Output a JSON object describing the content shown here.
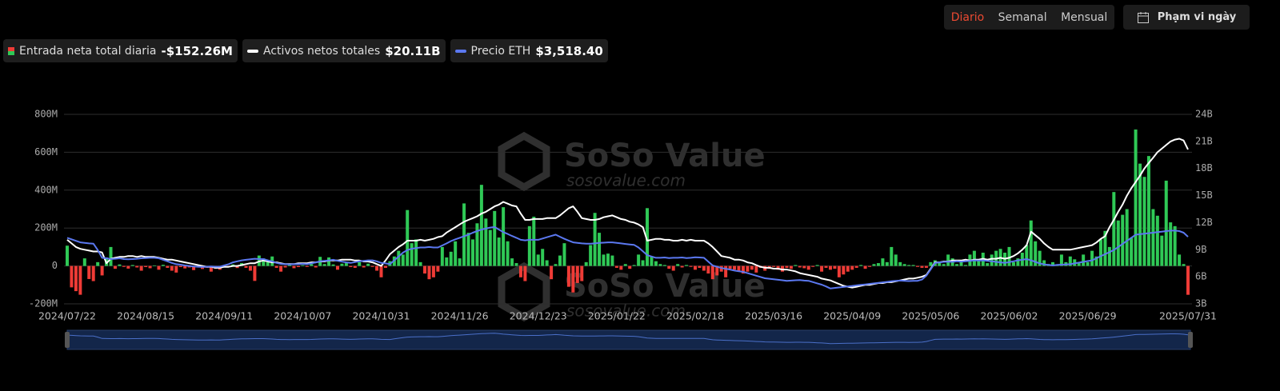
{
  "chart_data": {
    "type": "bar",
    "controls": [
      "Diario",
      "Semanal",
      "Mensual"
    ],
    "active_control": 0,
    "date_button": "Phạm vi ngày",
    "watermark": {
      "brand": "SoSo Value",
      "url": "sosovalue.com"
    },
    "categories": [
      "2024/07/22",
      null,
      null,
      null,
      null,
      null,
      null,
      null,
      null,
      null,
      null,
      null,
      null,
      null,
      null,
      null,
      null,
      null,
      "2024/08/15",
      null,
      null,
      null,
      null,
      null,
      null,
      null,
      null,
      null,
      null,
      null,
      null,
      null,
      null,
      null,
      null,
      null,
      "2024/09/11",
      null,
      null,
      null,
      null,
      null,
      null,
      null,
      null,
      null,
      null,
      null,
      null,
      null,
      null,
      null,
      null,
      null,
      "2024/10/07",
      null,
      null,
      null,
      null,
      null,
      null,
      null,
      null,
      null,
      null,
      null,
      null,
      null,
      null,
      null,
      null,
      null,
      "2024/10/31",
      null,
      null,
      null,
      null,
      null,
      null,
      null,
      null,
      null,
      null,
      null,
      null,
      null,
      null,
      null,
      null,
      null,
      "2024/11/26",
      null,
      null,
      null,
      null,
      null,
      null,
      null,
      null,
      null,
      null,
      null,
      null,
      null,
      null,
      null,
      null,
      null,
      "2024/12/23",
      null,
      null,
      null,
      null,
      null,
      null,
      null,
      null,
      null,
      null,
      null,
      null,
      null,
      null,
      null,
      null,
      null,
      "2025/01/22",
      null,
      null,
      null,
      null,
      null,
      null,
      null,
      null,
      null,
      null,
      null,
      null,
      null,
      null,
      null,
      null,
      null,
      "2025/02/18",
      null,
      null,
      null,
      null,
      null,
      null,
      null,
      null,
      null,
      null,
      null,
      null,
      null,
      null,
      null,
      null,
      null,
      "2025/03/16",
      null,
      null,
      null,
      null,
      null,
      null,
      null,
      null,
      null,
      null,
      null,
      null,
      null,
      null,
      null,
      null,
      null,
      "2025/04/09",
      null,
      null,
      null,
      null,
      null,
      null,
      null,
      null,
      null,
      null,
      null,
      null,
      null,
      null,
      null,
      null,
      null,
      "2025/05/06",
      null,
      null,
      null,
      null,
      null,
      null,
      null,
      null,
      null,
      null,
      null,
      null,
      null,
      null,
      null,
      null,
      null,
      "2025/06/02",
      null,
      null,
      null,
      null,
      null,
      null,
      null,
      null,
      null,
      null,
      null,
      null,
      null,
      null,
      null,
      null,
      null,
      "2025/06/29",
      null,
      null,
      null,
      null,
      null,
      null,
      null,
      null,
      null,
      null,
      null,
      null,
      null,
      null,
      null,
      null,
      null,
      null,
      null,
      null,
      null,
      null,
      "2025/07/31"
    ],
    "series": [
      {
        "name": "Entrada neta total diaria",
        "legend_value": "-$152.26M",
        "type": "bar",
        "axis": "y",
        "colors": {
          "positive": "#2fc956",
          "negative": "#ef3b36"
        },
        "values": [
          107,
          -113,
          -133,
          -152,
          40,
          -69,
          -80,
          20,
          -50,
          45,
          100,
          -15,
          8,
          -5,
          -14,
          5,
          -8,
          -25,
          -6,
          -12,
          3,
          -20,
          6,
          -10,
          -25,
          -35,
          -6,
          -13,
          -8,
          -22,
          -5,
          -16,
          -10,
          -30,
          -15,
          -20,
          -8,
          -5,
          8,
          -11,
          15,
          -10,
          -25,
          -79,
          55,
          40,
          20,
          50,
          -10,
          -30,
          -8,
          5,
          -12,
          -6,
          4,
          -5,
          10,
          -8,
          48,
          10,
          45,
          8,
          -20,
          12,
          15,
          -6,
          -10,
          20,
          -8,
          12,
          -5,
          -25,
          -60,
          -10,
          25,
          50,
          80,
          60,
          295,
          120,
          140,
          20,
          -40,
          -70,
          -60,
          -30,
          100,
          45,
          75,
          130,
          40,
          330,
          175,
          140,
          225,
          428,
          250,
          190,
          290,
          150,
          310,
          130,
          40,
          15,
          -60,
          -80,
          210,
          260,
          60,
          90,
          30,
          -70,
          10,
          55,
          120,
          -110,
          -140,
          -90,
          -80,
          20,
          110,
          280,
          175,
          60,
          65,
          55,
          -10,
          -20,
          10,
          -15,
          5,
          60,
          30,
          305,
          50,
          25,
          10,
          5,
          -15,
          -25,
          10,
          -8,
          5,
          -5,
          -20,
          -10,
          -25,
          -40,
          -70,
          -50,
          -30,
          -60,
          -15,
          -20,
          -25,
          -40,
          -30,
          -20,
          -35,
          -10,
          -25,
          -15,
          -5,
          -20,
          -30,
          -10,
          -15,
          5,
          -8,
          -12,
          -20,
          -5,
          5,
          -30,
          -10,
          -20,
          -15,
          -60,
          -45,
          -30,
          -20,
          -10,
          5,
          -15,
          -5,
          10,
          15,
          40,
          20,
          100,
          60,
          20,
          10,
          5,
          5,
          -5,
          -10,
          -10,
          20,
          30,
          15,
          10,
          60,
          40,
          10,
          20,
          5,
          60,
          80,
          30,
          70,
          15,
          60,
          80,
          90,
          70,
          100,
          20,
          40,
          70,
          110,
          240,
          130,
          80,
          30,
          10,
          20,
          5,
          60,
          20,
          50,
          35,
          15,
          60,
          20,
          80,
          50,
          140,
          185,
          100,
          390,
          240,
          270,
          300,
          150,
          720,
          540,
          470,
          580,
          300,
          265,
          160,
          450,
          230,
          210,
          60,
          10,
          -152.26
        ]
      },
      {
        "name": "Activos netos totales",
        "legend_value": "$20.11B",
        "type": "line",
        "axis": "y2",
        "color": "#ffffff",
        "values": [
          10.1,
          9.7,
          9.3,
          9.1,
          9.0,
          8.9,
          8.8,
          8.8,
          8.7,
          7.5,
          8.0,
          8.1,
          8.2,
          8.2,
          8.3,
          8.3,
          8.2,
          8.3,
          8.2,
          8.2,
          8.2,
          8.1,
          8.0,
          7.9,
          7.9,
          7.8,
          7.7,
          7.6,
          7.5,
          7.4,
          7.3,
          7.2,
          7.1,
          7.1,
          7.0,
          7.0,
          7.1,
          7.1,
          7.2,
          7.2,
          7.3,
          7.4,
          7.5,
          7.5,
          7.7,
          7.8,
          7.7,
          7.6,
          7.6,
          7.5,
          7.4,
          7.4,
          7.4,
          7.5,
          7.5,
          7.5,
          7.6,
          7.6,
          7.7,
          7.7,
          7.8,
          7.8,
          7.8,
          7.9,
          7.9,
          7.9,
          7.8,
          7.8,
          7.7,
          7.7,
          7.6,
          7.4,
          7.2,
          7.8,
          8.5,
          8.9,
          9.3,
          9.6,
          10.0,
          10.0,
          10.0,
          10.1,
          10.0,
          10.1,
          10.2,
          10.4,
          10.5,
          10.9,
          11.2,
          11.5,
          11.8,
          12.1,
          12.3,
          12.5,
          12.7,
          13.0,
          13.2,
          13.5,
          13.8,
          14.0,
          14.3,
          14.1,
          13.9,
          13.8,
          13.0,
          12.3,
          12.3,
          12.4,
          12.4,
          12.4,
          12.5,
          12.5,
          12.5,
          12.8,
          13.2,
          13.6,
          13.8,
          13.2,
          12.5,
          12.4,
          12.3,
          12.3,
          12.4,
          12.6,
          12.7,
          12.8,
          12.6,
          12.4,
          12.3,
          12.1,
          12.0,
          11.8,
          11.5,
          10.0,
          10.1,
          10.2,
          10.2,
          10.1,
          10.1,
          10.0,
          10.0,
          10.1,
          10.0,
          10.1,
          10.0,
          10.0,
          10.0,
          9.7,
          9.3,
          8.8,
          8.3,
          8.2,
          8.1,
          7.9,
          7.9,
          7.8,
          7.6,
          7.5,
          7.3,
          7.1,
          7.0,
          7.0,
          6.9,
          6.9,
          6.8,
          6.8,
          6.7,
          6.6,
          6.4,
          6.3,
          6.2,
          6.1,
          6.0,
          5.8,
          5.7,
          5.6,
          5.4,
          5.2,
          5.0,
          4.9,
          4.8,
          4.9,
          5.0,
          5.1,
          5.1,
          5.2,
          5.3,
          5.3,
          5.4,
          5.4,
          5.5,
          5.6,
          5.7,
          5.8,
          5.8,
          5.9,
          6.0,
          6.2,
          6.9,
          7.6,
          7.6,
          7.7,
          7.7,
          7.8,
          7.8,
          7.8,
          7.9,
          7.8,
          7.9,
          7.9,
          8.0,
          7.9,
          8.0,
          8.0,
          8.1,
          8.0,
          8.1,
          8.3,
          8.6,
          9.0,
          9.5,
          11.0,
          10.6,
          10.2,
          9.7,
          9.3,
          9.0,
          9.0,
          9.0,
          9.0,
          9.0,
          9.1,
          9.2,
          9.3,
          9.4,
          9.5,
          9.8,
          10.2,
          10.5,
          11.5,
          12.3,
          13.2,
          14.0,
          15.0,
          15.8,
          16.5,
          17.2,
          18.0,
          18.6,
          19.2,
          19.8,
          20.2,
          20.6,
          21.0,
          21.2,
          21.3,
          21.1,
          20.11
        ]
      },
      {
        "name": "Precio ETH",
        "legend_value": "$3,518.40",
        "type": "line",
        "axis": "y3",
        "color": "#5b78f0",
        "values": [
          3480,
          3420,
          3360,
          3300,
          3280,
          3260,
          3250,
          3000,
          2700,
          2680,
          2650,
          2660,
          2680,
          2650,
          2640,
          2650,
          2660,
          2680,
          2690,
          2700,
          2700,
          2680,
          2620,
          2560,
          2500,
          2450,
          2430,
          2400,
          2380,
          2360,
          2350,
          2340,
          2350,
          2360,
          2350,
          2350,
          2400,
          2450,
          2520,
          2560,
          2600,
          2620,
          2640,
          2660,
          2650,
          2650,
          2600,
          2560,
          2500,
          2460,
          2450,
          2440,
          2450,
          2450,
          2460,
          2450,
          2480,
          2520,
          2560,
          2580,
          2600,
          2620,
          2580,
          2550,
          2520,
          2500,
          2530,
          2560,
          2580,
          2600,
          2600,
          2560,
          2500,
          2480,
          2450,
          2600,
          2750,
          2900,
          3000,
          3050,
          3080,
          3100,
          3100,
          3120,
          3100,
          3100,
          3180,
          3260,
          3350,
          3420,
          3480,
          3540,
          3600,
          3680,
          3740,
          3800,
          3840,
          3880,
          3900,
          3800,
          3700,
          3630,
          3550,
          3480,
          3400,
          3380,
          3400,
          3400,
          3400,
          3450,
          3500,
          3550,
          3600,
          3520,
          3440,
          3370,
          3300,
          3280,
          3260,
          3250,
          3250,
          3260,
          3280,
          3290,
          3300,
          3300,
          3280,
          3260,
          3240,
          3220,
          3200,
          3100,
          2950,
          2800,
          2750,
          2700,
          2700,
          2710,
          2690,
          2700,
          2700,
          2710,
          2690,
          2700,
          2720,
          2710,
          2700,
          2550,
          2400,
          2350,
          2300,
          2270,
          2240,
          2200,
          2170,
          2150,
          2100,
          2050,
          2000,
          1950,
          1900,
          1880,
          1860,
          1840,
          1820,
          1800,
          1810,
          1820,
          1830,
          1810,
          1800,
          1750,
          1700,
          1650,
          1580,
          1500,
          1520,
          1540,
          1560,
          1580,
          1600,
          1620,
          1640,
          1660,
          1680,
          1700,
          1720,
          1740,
          1760,
          1780,
          1800,
          1810,
          1800,
          1790,
          1800,
          1800,
          1850,
          2000,
          2250,
          2500,
          2520,
          2540,
          2550,
          2540,
          2560,
          2550,
          2560,
          2580,
          2600,
          2590,
          2600,
          2580,
          2560,
          2540,
          2520,
          2500,
          2530,
          2560,
          2600,
          2620,
          2650,
          2600,
          2540,
          2480,
          2440,
          2420,
          2400,
          2420,
          2430,
          2440,
          2450,
          2480,
          2510,
          2540,
          2570,
          2600,
          2680,
          2760,
          2840,
          2920,
          3000,
          3120,
          3240,
          3360,
          3480,
          3600,
          3620,
          3640,
          3660,
          3680,
          3700,
          3720,
          3740,
          3760,
          3760,
          3740,
          3680,
          3518.4
        ]
      }
    ],
    "ylim": [
      -200,
      800
    ],
    "yticks": [
      {
        "value": -200,
        "label": "-200M"
      },
      0,
      {
        "value": 200,
        "label": "200M"
      },
      {
        "value": 400,
        "label": "400M"
      },
      {
        "value": 600,
        "label": "600M"
      },
      {
        "value": 800,
        "label": "800M"
      }
    ],
    "y2lim": [
      3,
      24
    ],
    "y2ticks": [
      {
        "value": 3,
        "label": "3B"
      },
      {
        "value": 6,
        "label": "6B"
      },
      {
        "value": 9,
        "label": "9B"
      },
      {
        "value": 12,
        "label": "12B"
      },
      {
        "value": 15,
        "label": "15B"
      },
      {
        "value": 18,
        "label": "18B"
      },
      {
        "value": 21,
        "label": "21B"
      },
      {
        "value": 24,
        "label": "24B"
      }
    ],
    "y3lim": [
      900,
      8300
    ],
    "grid": true,
    "navigator": true
  }
}
